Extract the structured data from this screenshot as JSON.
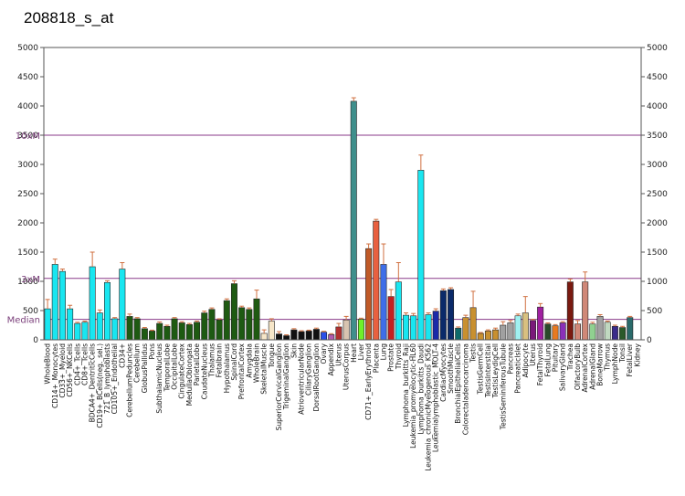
{
  "chart_data": {
    "type": "bar",
    "title": "208818_s_at",
    "ylim": [
      0,
      5000
    ],
    "y_ticks_left": [
      0,
      500,
      1000,
      1500,
      2000,
      2500,
      3000,
      3500,
      4000,
      4500,
      5000
    ],
    "y_ticks_right": [
      0,
      500,
      1000,
      1500,
      2000,
      2500,
      3000,
      3500,
      4000,
      4500,
      5000
    ],
    "reference_lines": [
      {
        "label": "10xM",
        "value": 3500
      },
      {
        "label": "3xM",
        "value": 1050
      },
      {
        "label": "Median",
        "value": 350
      }
    ],
    "bars": [
      {
        "label": "WholeBlood",
        "value": 530,
        "error": 160,
        "color": "#19e6f0"
      },
      {
        "label": "CD14+_Monocytes",
        "value": 1290,
        "error": 90,
        "color": "#19e6f0"
      },
      {
        "label": "CD33+_Myeloid",
        "value": 1170,
        "error": 40,
        "color": "#19e6f0"
      },
      {
        "label": "CD56+_NKCells",
        "value": 530,
        "error": 60,
        "color": "#19e6f0"
      },
      {
        "label": "CD4+_Tcells",
        "value": 280,
        "error": 20,
        "color": "#19e6f0"
      },
      {
        "label": "CD8+_Tcells",
        "value": 300,
        "error": 20,
        "color": "#19e6f0"
      },
      {
        "label": "BDCA4+_DentriticCells",
        "value": 1250,
        "error": 250,
        "color": "#19e6f0"
      },
      {
        "label": "CD19+_BCells(neg._sel.)",
        "value": 460,
        "error": 50,
        "color": "#19e6f0"
      },
      {
        "label": "721_B_lymphoblasts",
        "value": 980,
        "error": 30,
        "color": "#19e6f0"
      },
      {
        "label": "CD105+_Endothelial",
        "value": 360,
        "error": 20,
        "color": "#19e6f0"
      },
      {
        "label": "CD34+",
        "value": 1210,
        "error": 110,
        "color": "#19e6f0"
      },
      {
        "label": "CerebellumPeduncles",
        "value": 400,
        "error": 40,
        "color": "#1e5a12"
      },
      {
        "label": "Cerebellum",
        "value": 360,
        "error": 20,
        "color": "#1e5a12"
      },
      {
        "label": "GlobusPallidus",
        "value": 190,
        "error": 20,
        "color": "#1e5a12"
      },
      {
        "label": "Pons",
        "value": 150,
        "error": 15,
        "color": "#1e5a12"
      },
      {
        "label": "SubthalamicNucleus",
        "value": 280,
        "error": 25,
        "color": "#1e5a12"
      },
      {
        "label": "TemporalLobe",
        "value": 230,
        "error": 20,
        "color": "#1e5a12"
      },
      {
        "label": "OccipitalLobe",
        "value": 360,
        "error": 20,
        "color": "#1e5a12"
      },
      {
        "label": "CingulateCortex",
        "value": 290,
        "error": 20,
        "color": "#1e5a12"
      },
      {
        "label": "MedullaOblongata",
        "value": 260,
        "error": 20,
        "color": "#1e5a12"
      },
      {
        "label": "ParietalLobe",
        "value": 300,
        "error": 20,
        "color": "#1e5a12"
      },
      {
        "label": "CaudateNucleus",
        "value": 460,
        "error": 30,
        "color": "#1e5a12"
      },
      {
        "label": "Thalamus",
        "value": 520,
        "error": 25,
        "color": "#1e5a12"
      },
      {
        "label": "Fetalbrain",
        "value": 340,
        "error": 20,
        "color": "#1e5a12"
      },
      {
        "label": "Hypothalamus",
        "value": 670,
        "error": 30,
        "color": "#1e5a12"
      },
      {
        "label": "SpinalCord",
        "value": 960,
        "error": 50,
        "color": "#1e5a12"
      },
      {
        "label": "PrefrontalCortex",
        "value": 550,
        "error": 25,
        "color": "#1e5a12"
      },
      {
        "label": "Amygdala",
        "value": 520,
        "error": 25,
        "color": "#1e5a12"
      },
      {
        "label": "WholeBrain",
        "value": 700,
        "error": 150,
        "color": "#1e5a12"
      },
      {
        "label": "SkeletalMuscle",
        "value": 110,
        "error": 60,
        "color": "#f6e6c8"
      },
      {
        "label": "Tongue",
        "value": 320,
        "error": 40,
        "color": "#f6e6c8"
      },
      {
        "label": "SuperiorCervicalGanglion",
        "value": 100,
        "error": 40,
        "color": "#111111"
      },
      {
        "label": "TrigeminalGanglion",
        "value": 70,
        "error": 15,
        "color": "#111111"
      },
      {
        "label": "Skin",
        "value": 170,
        "error": 20,
        "color": "#111111"
      },
      {
        "label": "AtrioventricularNode",
        "value": 140,
        "error": 15,
        "color": "#111111"
      },
      {
        "label": "CiliaryGanglion",
        "value": 150,
        "error": 15,
        "color": "#111111"
      },
      {
        "label": "DorsalRootGanglion",
        "value": 180,
        "error": 20,
        "color": "#111111"
      },
      {
        "label": "Ovary",
        "value": 130,
        "error": 15,
        "color": "#2a50e8"
      },
      {
        "label": "Appendix",
        "value": 90,
        "error": 15,
        "color": "#b05ab0"
      },
      {
        "label": "Uterus",
        "value": 220,
        "error": 60,
        "color": "#b03030"
      },
      {
        "label": "UterusCorpus",
        "value": 340,
        "error": 60,
        "color": "#d8c4b0"
      },
      {
        "label": "Heart",
        "value": 4080,
        "error": 60,
        "color": "#3f8f8c"
      },
      {
        "label": "Liver",
        "value": 350,
        "error": 20,
        "color": "#6ef02a"
      },
      {
        "label": "CD71+_EarlyErythroid",
        "value": 1560,
        "error": 80,
        "color": "#c05a28"
      },
      {
        "label": "Placenta",
        "value": 2030,
        "error": 30,
        "color": "#e86040"
      },
      {
        "label": "Lung",
        "value": 1290,
        "error": 350,
        "color": "#3f6ee8"
      },
      {
        "label": "Prostate",
        "value": 740,
        "error": 120,
        "color": "#c42020"
      },
      {
        "label": "Thyroid",
        "value": 990,
        "error": 330,
        "color": "#19e6f0"
      },
      {
        "label": "Lymphoma_burkitts_Raji",
        "value": 420,
        "error": 40,
        "color": "#19e6f0"
      },
      {
        "label": "Leukemia_promyelocytic-HL60",
        "value": 410,
        "error": 40,
        "color": "#19e6f0"
      },
      {
        "label": "Lymphoma_burkitts_Daudi",
        "value": 2900,
        "error": 260,
        "color": "#19e6f0"
      },
      {
        "label": "Leukemia_chronicMyelogenous_K562",
        "value": 430,
        "error": 30,
        "color": "#19e6f0"
      },
      {
        "label": "Leukemialymphoblastic_MOLT-4",
        "value": 490,
        "error": 40,
        "color": "#1a2aa8"
      },
      {
        "label": "CardiacMyocytes",
        "value": 840,
        "error": 30,
        "color": "#0a2a6a"
      },
      {
        "label": "SmoothMuscle",
        "value": 860,
        "error": 30,
        "color": "#0a2a6a"
      },
      {
        "label": "BronchialEpithelialCells",
        "value": 200,
        "error": 20,
        "color": "#0d6a6a"
      },
      {
        "label": "Colorectaladenocarcinoma",
        "value": 380,
        "error": 40,
        "color": "#c89030"
      },
      {
        "label": "Testis",
        "value": 550,
        "error": 280,
        "color": "#c89030"
      },
      {
        "label": "TestisGermCell",
        "value": 110,
        "error": 15,
        "color": "#c89030"
      },
      {
        "label": "TestisInterstitial",
        "value": 150,
        "error": 20,
        "color": "#c89030"
      },
      {
        "label": "TestisLeydigCell",
        "value": 170,
        "error": 30,
        "color": "#c89030"
      },
      {
        "label": "TestisSeminiferousTubule",
        "value": 250,
        "error": 60,
        "color": "#a0a0a0"
      },
      {
        "label": "Pancreas",
        "value": 290,
        "error": 40,
        "color": "#a0a0a0"
      },
      {
        "label": "PancreaticIslet",
        "value": 410,
        "error": 30,
        "color": "#a0f0f0"
      },
      {
        "label": "Adipocyte",
        "value": 460,
        "error": 280,
        "color": "#d8c080"
      },
      {
        "label": "Uterus",
        "value": 330,
        "error": 20,
        "color": "#7a1a7a"
      },
      {
        "label": "FetalThyroid",
        "value": 560,
        "error": 60,
        "color": "#a020a0"
      },
      {
        "label": "FetalLung",
        "value": 270,
        "error": 20,
        "color": "#2a4a2a"
      },
      {
        "label": "Pituitary",
        "value": 240,
        "error": 20,
        "color": "#e87a20"
      },
      {
        "label": "SalivaryGland",
        "value": 290,
        "error": 20,
        "color": "#8a30b8"
      },
      {
        "label": "Trachea",
        "value": 990,
        "error": 50,
        "color": "#7a1a10"
      },
      {
        "label": "OlfactoryBulb",
        "value": 270,
        "error": 60,
        "color": "#d08878"
      },
      {
        "label": "AdrenalCortex",
        "value": 990,
        "error": 170,
        "color": "#d08878"
      },
      {
        "label": "AdrenalGland",
        "value": 270,
        "error": 30,
        "color": "#90d090"
      },
      {
        "label": "BoneMarrow",
        "value": 400,
        "error": 30,
        "color": "#a0a0a0"
      },
      {
        "label": "Thymus",
        "value": 300,
        "error": 20,
        "color": "#c0d8c0"
      },
      {
        "label": "LymphNode",
        "value": 230,
        "error": 20,
        "color": "#3a2a8a"
      },
      {
        "label": "Tonsil",
        "value": 210,
        "error": 20,
        "color": "#2a5a2a"
      },
      {
        "label": "FetalLiver",
        "value": 380,
        "error": 20,
        "color": "#2a6a6a"
      },
      {
        "label": "Kidney",
        "value": 0,
        "error": 0,
        "color": "#ffffff"
      }
    ],
    "x_tick_labels": [
      "WholeBlood",
      "CD14+_Monocytes",
      "CD33+_Myeloid",
      "CD56+_NKCells",
      "CD4+_Tcells",
      "CD8+_Tcells",
      "BDCA4+_DentriticCells",
      "CD19+_BCells(neg._sel.)",
      "721_B_lymphoblasts",
      "CD105+_Endothelial",
      "CD34+",
      "CerebellumPeduncles",
      "Cerebellum",
      "GlobusPallidus",
      "Pons",
      "SubthalamicNucleus",
      "TemporalLobe",
      "OccipitalLobe",
      "CingulateCortex",
      "MedullaOblongata",
      "ParietalLobe",
      "CaudateNucleus",
      "Thalamus",
      "Fetalbrain",
      "Hypothalamus",
      "SpinalCord",
      "PrefrontalCortex",
      "Amygdala",
      "WholeBrain",
      "SkeletalMuscle",
      "Tongue",
      "SuperiorCervicalGanglion",
      "TrigeminalGanglion",
      "Skin",
      "AtrioventricularNode",
      "CiliaryGanglion",
      "DorsalRootGanglion",
      "Ovary",
      "Appendix",
      "Uterus",
      "UterusCorpus",
      "Heart",
      "Liver",
      "CD71+_EarlyErythroid",
      "Placenta",
      "Lung",
      "Prostate",
      "Thyroid",
      "Lymphoma_burkitts_Raji",
      "Leukemia_promyelocytic-HL60",
      "Lymphoma_burkitts_Daudi",
      "Leukemia_chronicMyelogenous_K562",
      "Leukemialymphoblastic_MOLT-4",
      "CardiacMyocytes",
      "SmoothMuscle",
      "BronchialEpithelialCells",
      "Colorectaladenocarcinoma",
      "Testis",
      "TestisGermCell",
      "TestisInterstitial",
      "TestisLeydigCell",
      "TestisSeminiferousTubule",
      "Pancreas",
      "PancreaticIslet",
      "Adipocyte",
      "Uterus",
      "FetalThyroid",
      "FetalLung",
      "Pituitary",
      "SalivaryGland",
      "Trachea",
      "OlfactoryBulb",
      "AdrenalCortex",
      "AdrenalGland",
      "BoneMarrow",
      "Thymus",
      "LymphNode",
      "Tonsil",
      "FetalLiver",
      "Kidney"
    ],
    "colors": {
      "reference_line": "#8a3a8a",
      "error_bar": "#d07040",
      "axis": "#555555"
    }
  }
}
